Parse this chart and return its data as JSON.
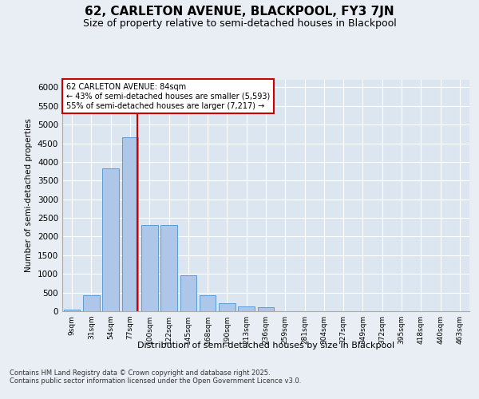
{
  "title": "62, CARLETON AVENUE, BLACKPOOL, FY3 7JN",
  "subtitle": "Size of property relative to semi-detached houses in Blackpool",
  "xlabel": "Distribution of semi-detached houses by size in Blackpool",
  "ylabel": "Number of semi-detached properties",
  "footer": "Contains HM Land Registry data © Crown copyright and database right 2025.\nContains public sector information licensed under the Open Government Licence v3.0.",
  "categories": [
    "9sqm",
    "31sqm",
    "54sqm",
    "77sqm",
    "100sqm",
    "122sqm",
    "145sqm",
    "168sqm",
    "190sqm",
    "213sqm",
    "236sqm",
    "259sqm",
    "281sqm",
    "304sqm",
    "327sqm",
    "349sqm",
    "372sqm",
    "395sqm",
    "418sqm",
    "440sqm",
    "463sqm"
  ],
  "bar_values": [
    50,
    430,
    3820,
    4660,
    2300,
    2300,
    960,
    430,
    210,
    130,
    110,
    0,
    0,
    0,
    0,
    0,
    0,
    0,
    0,
    0,
    0
  ],
  "bar_color": "#aec6e8",
  "bar_edge_color": "#5b9bd5",
  "vline_color": "#cc0000",
  "property_label": "62 CARLETON AVENUE: 84sqm",
  "pct_smaller": "43% of semi-detached houses are smaller (5,593)",
  "pct_larger": "55% of semi-detached houses are larger (7,217)",
  "annotation_arrow_left": "←",
  "annotation_arrow_right": "→",
  "ylim": [
    0,
    6200
  ],
  "yticks": [
    0,
    500,
    1000,
    1500,
    2000,
    2500,
    3000,
    3500,
    4000,
    4500,
    5000,
    5500,
    6000
  ],
  "bg_color": "#e8eef4",
  "plot_bg_color": "#dce6f0",
  "title_fontsize": 11,
  "subtitle_fontsize": 9,
  "annotation_box_color": "#ffffff",
  "annotation_box_edge": "#cc0000"
}
